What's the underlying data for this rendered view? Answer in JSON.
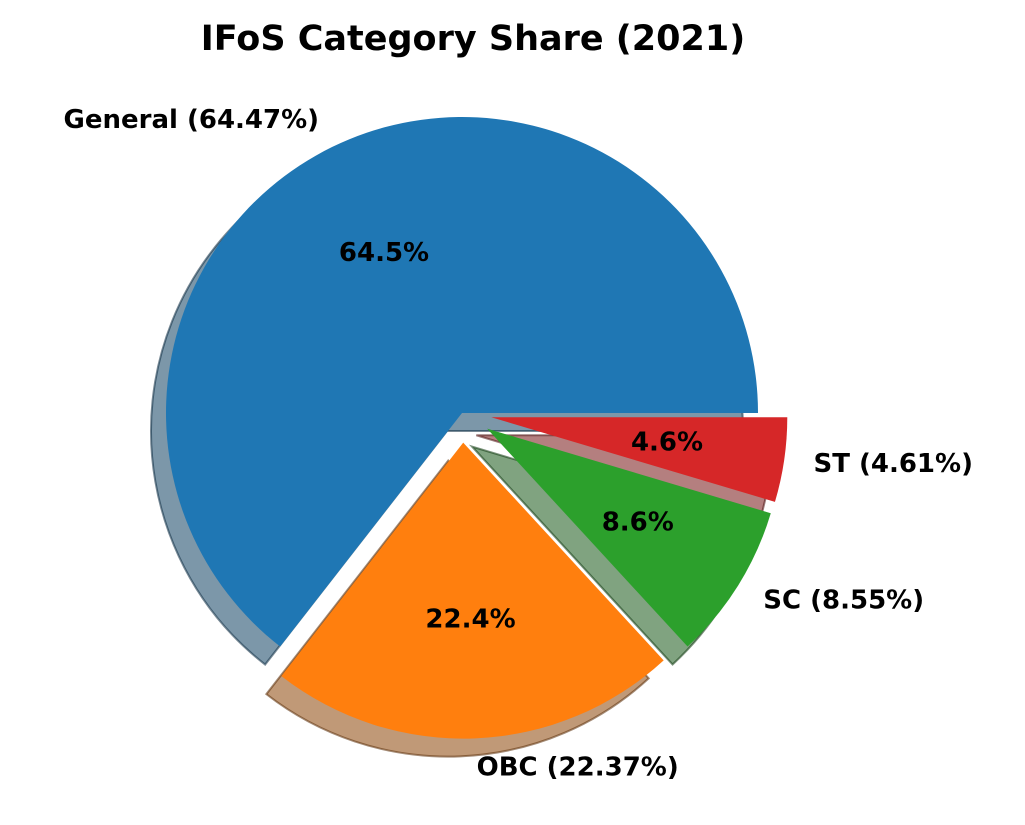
{
  "chart_data": {
    "type": "pie",
    "title": "IFoS Category Share (2021)",
    "slices": [
      {
        "name": "General",
        "value": 64.47,
        "label": "General (64.47%)",
        "pct_label": "64.5%",
        "color": "#1f77b4",
        "explode": 0.0
      },
      {
        "name": "OBC",
        "value": 22.37,
        "label": "OBC (22.37%)",
        "pct_label": "22.4%",
        "color": "#ff7f0e",
        "explode": 0.1
      },
      {
        "name": "SC",
        "value": 8.55,
        "label": "SC (8.55%)",
        "pct_label": "8.6%",
        "color": "#2ca02c",
        "explode": 0.1
      },
      {
        "name": "ST",
        "value": 4.61,
        "label": "ST (4.61%)",
        "pct_label": "4.6%",
        "color": "#d62728",
        "explode": 0.1
      }
    ],
    "start_angle_deg": 0,
    "direction": "counterclockwise",
    "shadow": true,
    "legend": "none"
  }
}
